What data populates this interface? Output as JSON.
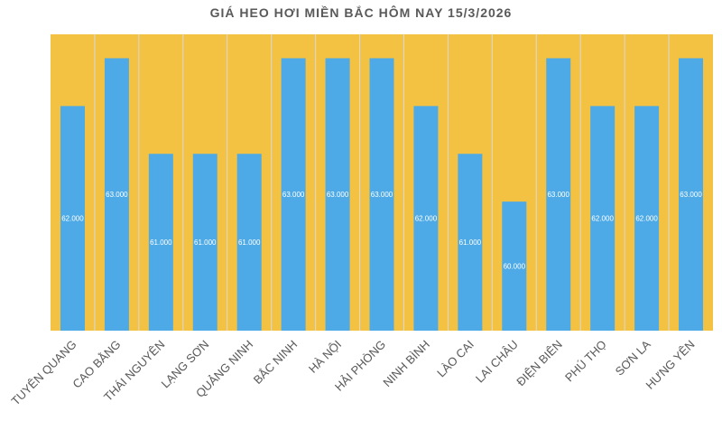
{
  "chart_data": {
    "type": "bar",
    "title": "GIÁ HEO HƠI MIỀN BẮC HÔM NAY 15/3/2026",
    "categories": [
      "TUYÊN QUANG",
      "CAO BẰNG",
      "THÁI NGUYÊN",
      "LẠNG SƠN",
      "QUẢNG NINH",
      "BẮC NINH",
      "HÀ NỘI",
      "HẢI PHÒNG",
      "NINH BÌNH",
      "LÀO CAI",
      "LAI CHÂU",
      "ĐIỆN BIÊN",
      "PHÚ THỌ",
      "SƠN LA",
      "HƯNG YÊN"
    ],
    "values": [
      62000,
      63000,
      61000,
      61000,
      61000,
      63000,
      63000,
      63000,
      62000,
      61000,
      60000,
      63000,
      62000,
      62000,
      63000
    ],
    "data_labels": [
      "62.000",
      "63.000",
      "61.000",
      "61.000",
      "61.000",
      "63.000",
      "63.000",
      "63.000",
      "62.000",
      "61.000",
      "60.000",
      "63.000",
      "62.000",
      "62.000",
      "63.000"
    ],
    "ylim": [
      57300,
      63500
    ],
    "bar_color": "#4daae6",
    "plot_background": "#f4c242",
    "grid": "vertical separators between categories",
    "legend": "none"
  }
}
